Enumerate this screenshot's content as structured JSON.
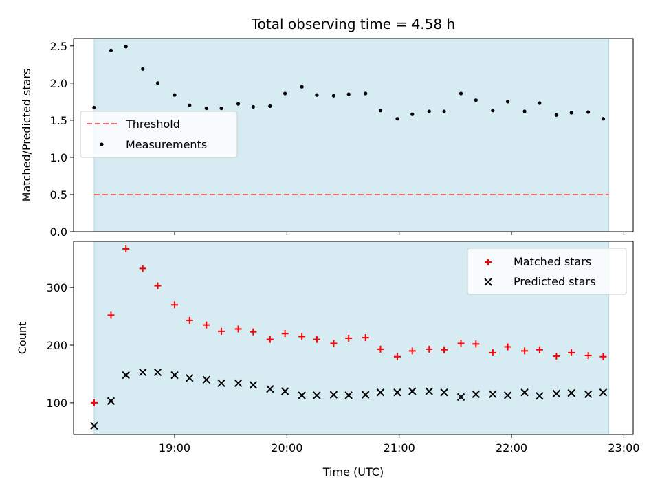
{
  "title": "Total observing time = 4.58 h",
  "xlabel": "Time (UTC)",
  "colors": {
    "shade": "#add8e6",
    "threshold": "#ff6b6b",
    "matched": "#ff0000",
    "predicted": "#000000",
    "measurements": "#000000"
  },
  "chart_data": [
    {
      "type": "scatter",
      "title": "Total observing time = 4.58 h",
      "xlabel": "",
      "ylabel": "Matched/Predicted stars",
      "xlim": [
        "18:06",
        "23:05"
      ],
      "ylim": [
        0,
        2.6
      ],
      "yticks": [
        0.0,
        0.5,
        1.0,
        1.5,
        2.0,
        2.5
      ],
      "ytick_labels": [
        "0.0",
        "0.5",
        "1.0",
        "1.5",
        "2.0",
        "2.5"
      ],
      "shaded_span": [
        "18:17",
        "22:52"
      ],
      "legend_position": "center-left",
      "series": [
        {
          "name": "Threshold",
          "kind": "hline",
          "value": 0.5
        },
        {
          "name": "Measurements",
          "kind": "points",
          "x": [
            "18:17",
            "18:26",
            "18:34",
            "18:43",
            "18:51",
            "19:00",
            "19:08",
            "19:17",
            "19:25",
            "19:34",
            "19:42",
            "19:51",
            "19:59",
            "20:08",
            "20:16",
            "20:25",
            "20:33",
            "20:42",
            "20:50",
            "20:59",
            "21:07",
            "21:16",
            "21:24",
            "21:33",
            "21:41",
            "21:50",
            "21:58",
            "22:07",
            "22:15",
            "22:24",
            "22:32",
            "22:41",
            "22:49"
          ],
          "y": [
            1.67,
            2.44,
            2.49,
            2.19,
            2.0,
            1.84,
            1.7,
            1.66,
            1.66,
            1.72,
            1.68,
            1.69,
            1.86,
            1.95,
            1.84,
            1.83,
            1.85,
            1.86,
            1.63,
            1.52,
            1.58,
            1.62,
            1.62,
            1.86,
            1.77,
            1.63,
            1.75,
            1.62,
            1.73,
            1.57,
            1.6,
            1.61,
            1.52
          ]
        }
      ]
    },
    {
      "type": "scatter",
      "xlabel": "Time (UTC)",
      "ylabel": "Count",
      "xlim": [
        "18:06",
        "23:05"
      ],
      "ylim": [
        45,
        380
      ],
      "yticks": [
        100,
        200,
        300
      ],
      "ytick_labels": [
        "100",
        "200",
        "300"
      ],
      "xticks": [
        "19:00",
        "20:00",
        "21:00",
        "22:00",
        "23:00"
      ],
      "xtick_labels": [
        "19:00",
        "20:00",
        "21:00",
        "22:00",
        "23:00"
      ],
      "shaded_span": [
        "18:17",
        "22:52"
      ],
      "legend_position": "top-right",
      "series": [
        {
          "name": "Matched stars",
          "marker": "+",
          "x": [
            "18:17",
            "18:26",
            "18:34",
            "18:43",
            "18:51",
            "19:00",
            "19:08",
            "19:17",
            "19:25",
            "19:34",
            "19:42",
            "19:51",
            "19:59",
            "20:08",
            "20:16",
            "20:25",
            "20:33",
            "20:42",
            "20:50",
            "20:59",
            "21:07",
            "21:16",
            "21:24",
            "21:33",
            "21:41",
            "21:50",
            "21:58",
            "22:07",
            "22:15",
            "22:24",
            "22:32",
            "22:41",
            "22:49"
          ],
          "y": [
            100,
            252,
            367,
            333,
            303,
            270,
            243,
            235,
            224,
            228,
            223,
            210,
            220,
            215,
            210,
            203,
            212,
            213,
            193,
            180,
            190,
            193,
            192,
            203,
            202,
            187,
            197,
            190,
            192,
            181,
            187,
            182,
            180
          ]
        },
        {
          "name": "Predicted stars",
          "marker": "x",
          "x": [
            "18:17",
            "18:26",
            "18:34",
            "18:43",
            "18:51",
            "19:00",
            "19:08",
            "19:17",
            "19:25",
            "19:34",
            "19:42",
            "19:51",
            "19:59",
            "20:08",
            "20:16",
            "20:25",
            "20:33",
            "20:42",
            "20:50",
            "20:59",
            "21:07",
            "21:16",
            "21:24",
            "21:33",
            "21:41",
            "21:50",
            "21:58",
            "22:07",
            "22:15",
            "22:24",
            "22:32",
            "22:41",
            "22:49"
          ],
          "y": [
            60,
            103,
            148,
            153,
            153,
            148,
            143,
            140,
            134,
            134,
            131,
            124,
            120,
            113,
            113,
            114,
            113,
            114,
            118,
            118,
            120,
            120,
            118,
            110,
            115,
            115,
            113,
            118,
            112,
            116,
            117,
            115,
            118
          ]
        }
      ]
    }
  ]
}
